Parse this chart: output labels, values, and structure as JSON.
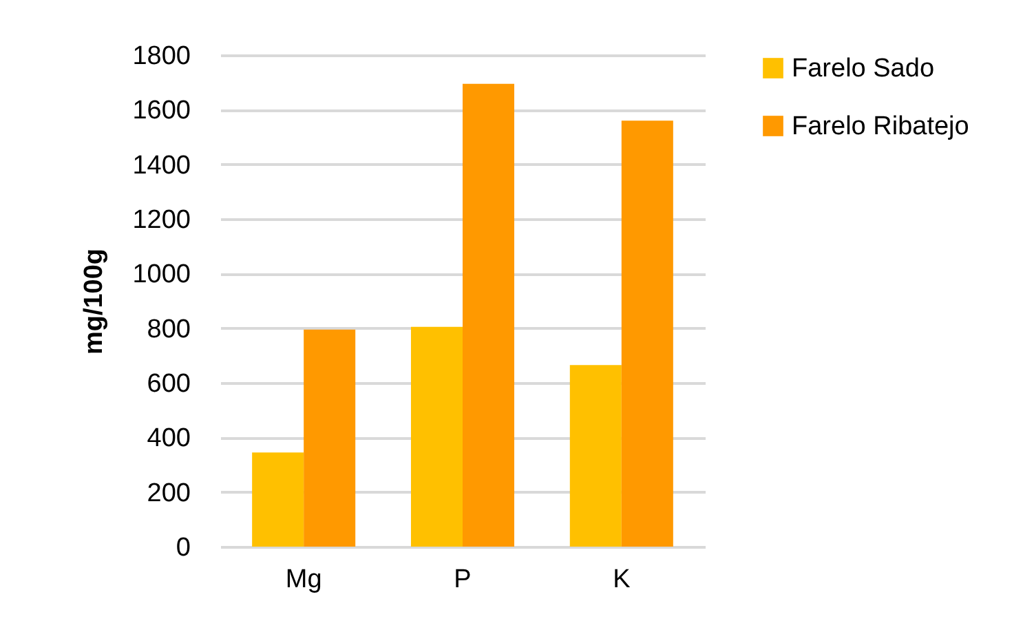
{
  "chart_data": {
    "type": "bar",
    "ylabel": "mg/100g",
    "categories": [
      "Mg",
      "P",
      "K"
    ],
    "series": [
      {
        "name": "Farelo Sado",
        "color": "#ffc000",
        "values": [
          345,
          805,
          665
        ]
      },
      {
        "name": "Farelo Ribatejo",
        "color": "#ff9900",
        "values": [
          795,
          1695,
          1560
        ]
      }
    ],
    "ylim": [
      0,
      1800
    ],
    "yticks": [
      0,
      200,
      400,
      600,
      800,
      1000,
      1200,
      1400,
      1600,
      1800
    ],
    "grid": "y",
    "legend": "right"
  }
}
